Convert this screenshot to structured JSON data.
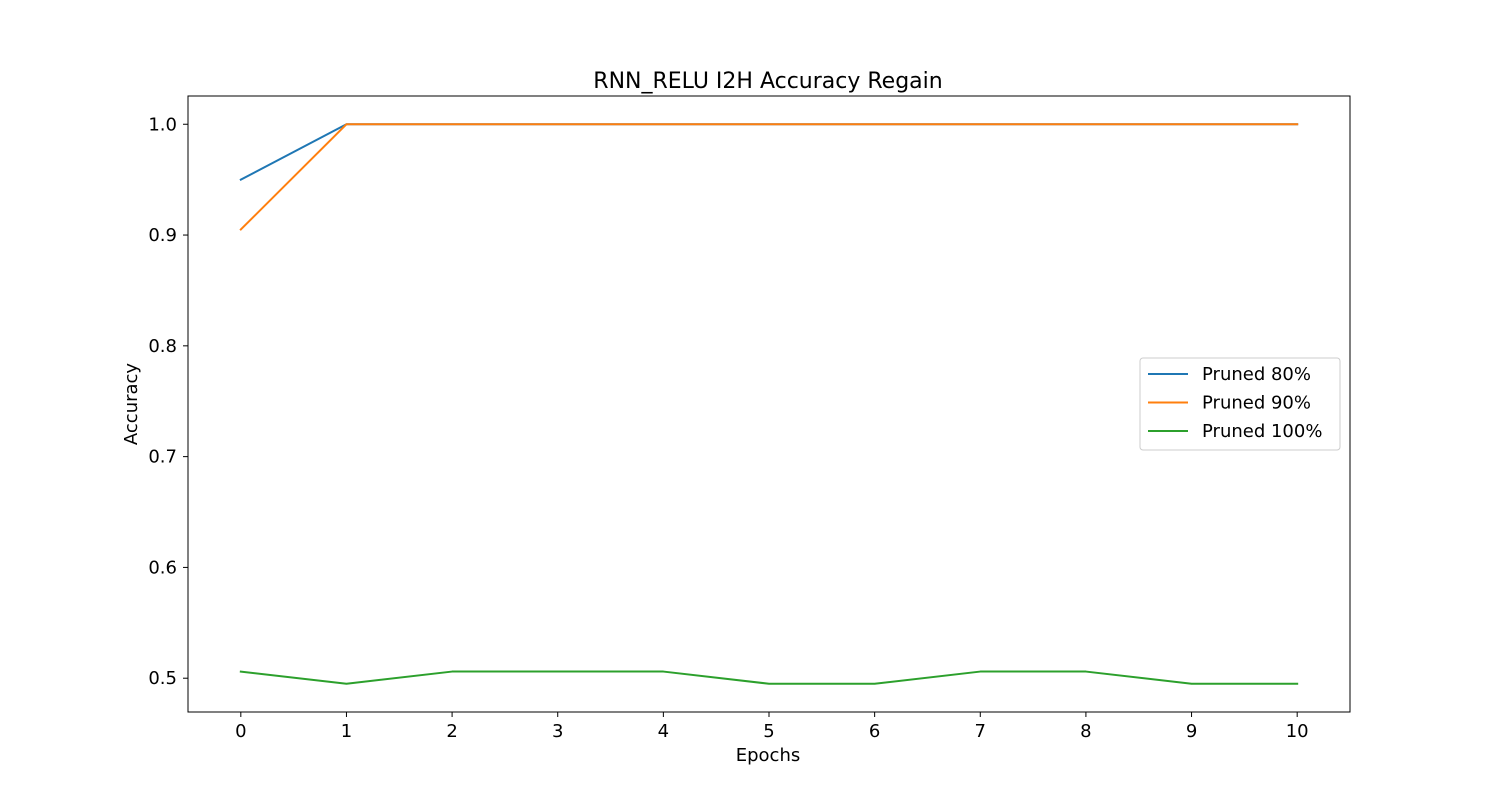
{
  "chart_data": {
    "type": "line",
    "title": "RNN_RELU I2H Accuracy Regain",
    "xlabel": "Epochs",
    "ylabel": "Accuracy",
    "x": [
      0,
      1,
      2,
      3,
      4,
      5,
      6,
      7,
      8,
      9,
      10
    ],
    "xlim": [
      -0.5,
      10.5
    ],
    "ylim": [
      0.4695,
      1.0255
    ],
    "xticks": [
      "0",
      "1",
      "2",
      "3",
      "4",
      "5",
      "6",
      "7",
      "8",
      "9",
      "10"
    ],
    "yticks": [
      "0.5",
      "0.6",
      "0.7",
      "0.8",
      "0.9",
      "1.0"
    ],
    "grid": false,
    "legend_position": "center-right",
    "series": [
      {
        "name": "Pruned 80%",
        "color": "#1f77b4",
        "values": [
          0.95,
          1.0,
          1.0,
          1.0,
          1.0,
          1.0,
          1.0,
          1.0,
          1.0,
          1.0,
          1.0
        ]
      },
      {
        "name": "Pruned 90%",
        "color": "#ff7f0e",
        "values": [
          0.905,
          1.0,
          1.0,
          1.0,
          1.0,
          1.0,
          1.0,
          1.0,
          1.0,
          1.0,
          1.0
        ]
      },
      {
        "name": "Pruned 100%",
        "color": "#2ca02c",
        "values": [
          0.506,
          0.495,
          0.506,
          0.506,
          0.506,
          0.495,
          0.495,
          0.506,
          0.506,
          0.495,
          0.495
        ]
      }
    ]
  }
}
